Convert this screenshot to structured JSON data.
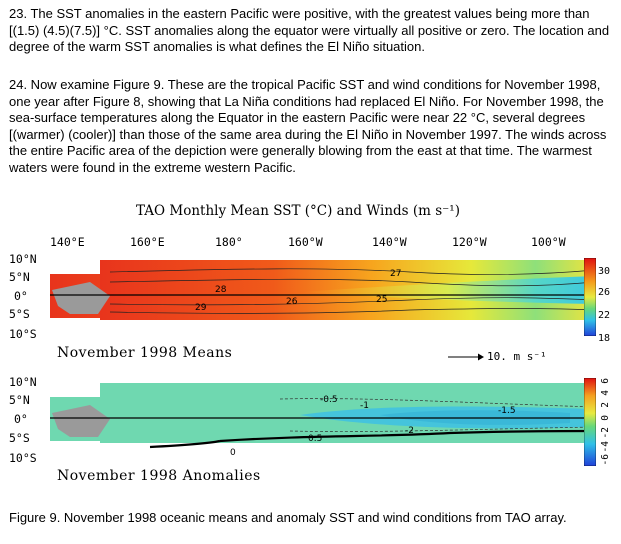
{
  "paragraphs": {
    "p23": "23. The SST anomalies in the eastern Pacific were positive, with the greatest values being more than [(1.5) (4.5)(7.5)] °C. SST anomalies along the equator were virtually all positive or zero. The location and degree of the warm SST anomalies is what defines the El Niño situation.",
    "p24": "24. Now examine Figure 9. These are the tropical Pacific SST and wind conditions for November 1998, one year after Figure 8, showing that La Niña conditions had replaced El Niño. For November 1998, the sea-surface temperatures along the Equator in the eastern Pacific were near 22 °C, several degrees [(warmer) (cooler)] than those of the same area during the El Niño in November 1997. The winds across the entire Pacific area of the depiction were generally blowing from the east at that time. The warmest waters were found in the extreme western Pacific."
  },
  "figure": {
    "title": "TAO Monthly Mean SST (°C) and Winds (m s⁻¹)",
    "longitudes": [
      "140°E",
      "160°E",
      "180°",
      "160°W",
      "140°W",
      "120°W",
      "100°W"
    ],
    "latitudes": [
      "10°N",
      "5°N",
      "0°",
      "5°S",
      "10°S"
    ],
    "means_panel": {
      "label": "November 1998 Means",
      "contour_labels": [
        "27",
        "28",
        "29",
        "26",
        "25"
      ],
      "colorbar_ticks": [
        "30",
        "26",
        "22",
        "18"
      ]
    },
    "anomaly_panel": {
      "label": "November 1998 Anomalies",
      "contour_labels": [
        "-0.5",
        "0.5",
        "0",
        "-1",
        "-1.5",
        "-2"
      ],
      "colorbar_ticks": [
        "6",
        "4",
        "2",
        "0",
        "-2",
        "-4",
        "-6"
      ]
    },
    "wind_reference": "10. m s⁻¹",
    "caption": "Figure 9. November 1998 oceanic means and anomaly SST and wind conditions from TAO array."
  },
  "colors": {
    "warm": "#e8341c",
    "warm_orange": "#f47a1a",
    "yellow": "#f2e23a",
    "green": "#7fd37a",
    "cyan": "#4fd3e8",
    "anomaly_base": "#6fd8b0",
    "anomaly_cool": "#45c4dc",
    "land": "#9a9a9a"
  }
}
